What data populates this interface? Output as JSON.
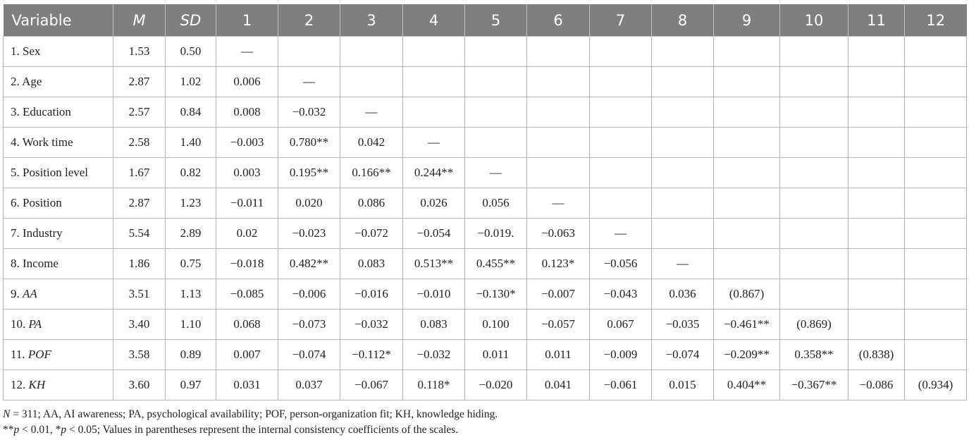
{
  "table": {
    "headers": [
      "Variable",
      "M",
      "SD",
      "1",
      "2",
      "3",
      "4",
      "5",
      "6",
      "7",
      "8",
      "9",
      "10",
      "11",
      "12"
    ],
    "rows": [
      {
        "num": "1.",
        "name": "Sex",
        "italic": false,
        "cells": [
          "1.53",
          "0.50",
          "—",
          "",
          "",
          "",
          "",
          "",
          "",
          "",
          "",
          "",
          "",
          ""
        ]
      },
      {
        "num": "2.",
        "name": "Age",
        "italic": false,
        "cells": [
          "2.87",
          "1.02",
          "0.006",
          "—",
          "",
          "",
          "",
          "",
          "",
          "",
          "",
          "",
          "",
          ""
        ]
      },
      {
        "num": "3.",
        "name": "Education",
        "italic": false,
        "cells": [
          "2.57",
          "0.84",
          "0.008",
          "−0.032",
          "—",
          "",
          "",
          "",
          "",
          "",
          "",
          "",
          "",
          ""
        ]
      },
      {
        "num": "4.",
        "name": "Work time",
        "italic": false,
        "cells": [
          "2.58",
          "1.40",
          "−0.003",
          "0.780**",
          "0.042",
          "—",
          "",
          "",
          "",
          "",
          "",
          "",
          "",
          ""
        ]
      },
      {
        "num": "5.",
        "name": "Position level",
        "italic": false,
        "cells": [
          "1.67",
          "0.82",
          "0.003",
          "0.195**",
          "0.166**",
          "0.244**",
          "—",
          "",
          "",
          "",
          "",
          "",
          "",
          ""
        ]
      },
      {
        "num": "6.",
        "name": "Position",
        "italic": false,
        "cells": [
          "2.87",
          "1.23",
          "−0.011",
          "0.020",
          "0.086",
          "0.026",
          "0.056",
          "—",
          "",
          "",
          "",
          "",
          "",
          ""
        ]
      },
      {
        "num": "7.",
        "name": "Industry",
        "italic": false,
        "cells": [
          "5.54",
          "2.89",
          "0.02",
          "−0.023",
          "−0.072",
          "−0.054",
          "−0.019.",
          "−0.063",
          "—",
          "",
          "",
          "",
          "",
          ""
        ]
      },
      {
        "num": "8.",
        "name": "Income",
        "italic": false,
        "cells": [
          "1.86",
          "0.75",
          "−0.018",
          "0.482**",
          "0.083",
          "0.513**",
          "0.455**",
          "0.123*",
          "−0.056",
          "—",
          "",
          "",
          "",
          ""
        ]
      },
      {
        "num": "9.",
        "name": "AA",
        "italic": true,
        "cells": [
          "3.51",
          "1.13",
          "−0.085",
          "−0.006",
          "−0.016",
          "−0.010",
          "−0.130*",
          "−0.007",
          "−0.043",
          "0.036",
          "(0.867)",
          "",
          "",
          ""
        ]
      },
      {
        "num": "10.",
        "name": "PA",
        "italic": true,
        "cells": [
          "3.40",
          "1.10",
          "0.068",
          "−0.073",
          "−0.032",
          "0.083",
          "0.100",
          "−0.057",
          "0.067",
          "−0.035",
          "−0.461**",
          "(0.869)",
          "",
          ""
        ]
      },
      {
        "num": "11.",
        "name": "POF",
        "italic": true,
        "cells": [
          "3.58",
          "0.89",
          "0.007",
          "−0.074",
          "−0.112*",
          "−0.032",
          "0.011",
          "0.011",
          "−0.009",
          "−0.074",
          "−0.209**",
          "0.358**",
          "(0.838)",
          ""
        ]
      },
      {
        "num": "12.",
        "name": "KH",
        "italic": true,
        "cells": [
          "3.60",
          "0.97",
          "0.031",
          "0.037",
          "−0.067",
          "0.118*",
          "−0.020",
          "0.041",
          "−0.061",
          "0.015",
          "0.404**",
          "−0.367**",
          "−0.086",
          "(0.934)"
        ]
      }
    ]
  },
  "notes": {
    "n_symbol": "N",
    "line1": " = 311; AA, AI awareness; PA, psychological availability; POF, person-organization fit; KH, knowledge hiding.",
    "stars2": "**",
    "p1": "p",
    "mid": " < 0.01, *",
    "p2": "p",
    "line2": " < 0.05; Values in parentheses represent the internal consistency coefficients of the scales."
  }
}
